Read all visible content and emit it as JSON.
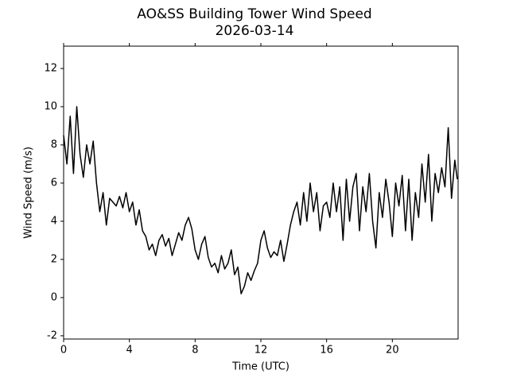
{
  "chart_data": {
    "type": "line",
    "title": "AO&SS Building Tower Wind Speed",
    "subtitle": "2026-03-14",
    "xlabel": "Time (UTC)",
    "ylabel": "Wind Speed (m/s)",
    "xlim": [
      0,
      24
    ],
    "ylim": [
      -2.17,
      13.17
    ],
    "xticks": [
      0,
      4,
      8,
      12,
      16,
      20
    ],
    "yticks": [
      -2,
      0,
      2,
      4,
      6,
      8,
      10,
      12
    ],
    "grid": false,
    "x": [
      0,
      0.2,
      0.4,
      0.6,
      0.8,
      1,
      1.2,
      1.4,
      1.6,
      1.8,
      2,
      2.2,
      2.4,
      2.6,
      2.8,
      3,
      3.2,
      3.4,
      3.6,
      3.8,
      4,
      4.2,
      4.4,
      4.6,
      4.8,
      5,
      5.2,
      5.4,
      5.6,
      5.8,
      6,
      6.2,
      6.4,
      6.6,
      6.8,
      7,
      7.2,
      7.4,
      7.6,
      7.8,
      8,
      8.2,
      8.4,
      8.6,
      8.8,
      9,
      9.2,
      9.4,
      9.6,
      9.8,
      10,
      10.2,
      10.4,
      10.6,
      10.8,
      11,
      11.2,
      11.4,
      11.6,
      11.8,
      12,
      12.2,
      12.4,
      12.6,
      12.8,
      13,
      13.2,
      13.4,
      13.6,
      13.8,
      14,
      14.2,
      14.4,
      14.6,
      14.8,
      15,
      15.2,
      15.4,
      15.6,
      15.8,
      16,
      16.2,
      16.4,
      16.6,
      16.8,
      17,
      17.2,
      17.4,
      17.6,
      17.8,
      18,
      18.2,
      18.4,
      18.6,
      18.8,
      19,
      19.2,
      19.4,
      19.6,
      19.8,
      20,
      20.2,
      20.4,
      20.6,
      20.8,
      21,
      21.2,
      21.4,
      21.6,
      21.8,
      22,
      22.2,
      22.4,
      22.6,
      22.8,
      23,
      23.2,
      23.4,
      23.6,
      23.8,
      23.95
    ],
    "series": [
      {
        "name": "Wind Speed",
        "color": "#000000",
        "values": [
          8.5,
          7,
          9.5,
          6.5,
          10,
          7.5,
          6.3,
          8,
          7,
          8.2,
          6,
          4.5,
          5.5,
          3.8,
          5.2,
          5,
          4.8,
          5.3,
          4.7,
          5.5,
          4.5,
          5,
          3.8,
          4.6,
          3.5,
          3.2,
          2.5,
          2.8,
          2.2,
          3,
          3.3,
          2.7,
          3.1,
          2.2,
          2.8,
          3.4,
          3,
          3.8,
          4.2,
          3.6,
          2.5,
          2,
          2.8,
          3.2,
          2.1,
          1.6,
          1.8,
          1.3,
          2.2,
          1.5,
          1.8,
          2.5,
          1.2,
          1.6,
          0.2,
          0.6,
          1.3,
          0.9,
          1.4,
          1.8,
          3,
          3.5,
          2.6,
          2.1,
          2.4,
          2.2,
          3,
          1.9,
          2.8,
          3.8,
          4.5,
          5,
          3.8,
          5.5,
          4,
          6,
          4.5,
          5.5,
          3.5,
          4.8,
          5,
          4.2,
          6,
          4.5,
          5.8,
          3,
          6.2,
          4,
          5.8,
          6.5,
          3.5,
          5.8,
          4.5,
          6.5,
          4,
          2.6,
          5.5,
          4.2,
          6.2,
          5,
          3.2,
          6,
          4.8,
          6.4,
          3.5,
          6.2,
          3,
          5.5,
          4.2,
          7,
          5,
          7.5,
          4,
          6.5,
          5.5,
          6.8,
          5.8,
          8.9,
          5.2,
          7.2,
          6.2
        ]
      }
    ]
  }
}
